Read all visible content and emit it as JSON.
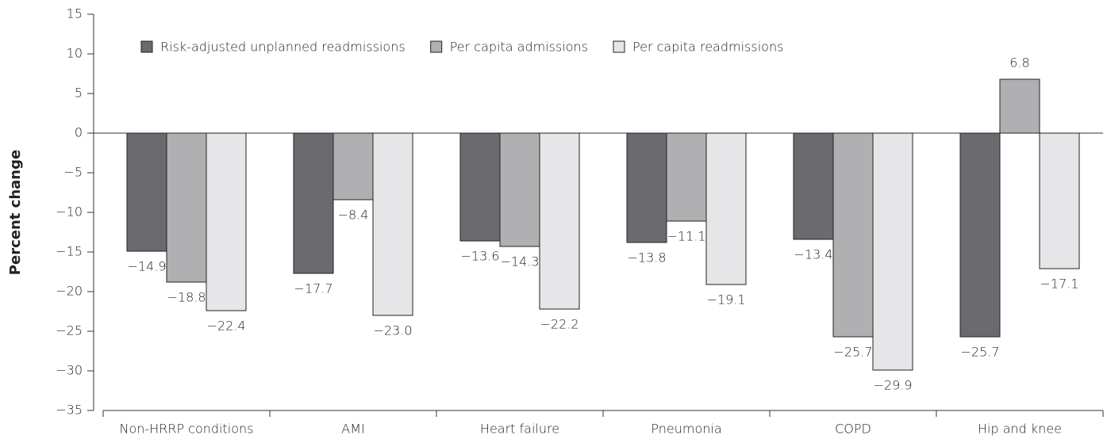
{
  "chart_data": {
    "type": "bar",
    "y_label": "Percent change",
    "categories": [
      "Non-HRRP conditions",
      "AMI",
      "Heart failure",
      "Pneumonia",
      "COPD",
      "Hip and knee"
    ],
    "series": [
      {
        "name": "Risk-adjusted unplanned readmissions",
        "color": "#6b6b6f",
        "values": [
          -14.9,
          -17.7,
          -13.6,
          -13.8,
          -13.4,
          -25.7
        ],
        "value_labels": [
          "−14.9",
          "−17.7",
          "−13.6",
          "−13.8",
          "−13.4",
          "−25.7"
        ]
      },
      {
        "name": "Per capita admissions",
        "color": "#b0b0b3",
        "values": [
          -18.8,
          -8.4,
          -14.3,
          -11.1,
          -25.7,
          6.8
        ],
        "value_labels": [
          "−18.8",
          "−8.4",
          "−14.3",
          "−11.1",
          "−25.7",
          "6.8"
        ]
      },
      {
        "name": "Per capita readmissions",
        "color": "#e6e6e8",
        "values": [
          -22.4,
          -23.0,
          -22.2,
          -19.1,
          -29.9,
          -17.1
        ],
        "value_labels": [
          "−22.4",
          "−23.0",
          "−22.2",
          "−19.1",
          "−29.9",
          "−17.1"
        ]
      }
    ],
    "ylim": [
      -35,
      15
    ],
    "yticks": [
      15,
      10,
      5,
      0,
      {
        "value": -5,
        "label": "−5"
      },
      {
        "value": -10,
        "label": "−10"
      },
      {
        "value": -15,
        "label": "−15"
      },
      {
        "value": -20,
        "label": "−20"
      },
      {
        "value": -25,
        "label": "−25"
      },
      {
        "value": -30,
        "label": "−30"
      },
      {
        "value": -35,
        "label": "−35"
      }
    ],
    "legend": "upper left",
    "grid": false
  }
}
